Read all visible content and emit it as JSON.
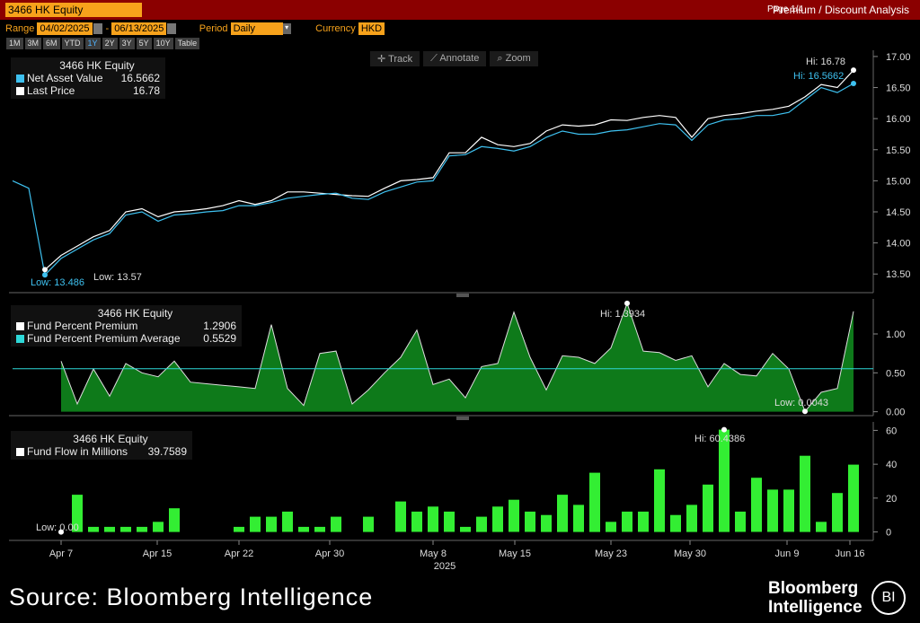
{
  "header": {
    "ticker": "3466 HK Equity",
    "page": "Page 1/4",
    "analysis_title": "Premium / Discount Analysis"
  },
  "controls": {
    "range_label": "Range",
    "range_start": "04/02/2025",
    "range_end": "06/13/2025",
    "period_label": "Period",
    "period_value": "Daily",
    "currency_label": "Currency",
    "currency_value": "HKD",
    "range_buttons": [
      "1M",
      "3M",
      "6M",
      "YTD",
      "1Y",
      "2Y",
      "3Y",
      "5Y",
      "10Y",
      "Table"
    ],
    "active_button": "1Y"
  },
  "tools": {
    "track": "Track",
    "annotate": "Annotate",
    "zoom": "Zoom"
  },
  "legend_top": {
    "title": "3466 HK Equity",
    "nav_label": "Net Asset Value",
    "nav_value": "16.5662",
    "price_label": "Last Price",
    "price_value": "16.78",
    "nav_color": "#3ec1f0",
    "price_color": "#ffffff"
  },
  "legend_mid": {
    "title": "3466 HK Equity",
    "prem_label": "Fund Percent Premium",
    "prem_value": "1.2906",
    "avg_label": "Fund Percent Premium Average",
    "avg_value": "0.5529",
    "prem_color": "#ffffff",
    "avg_color": "#2ed8d8"
  },
  "legend_bot": {
    "title": "3466 HK Equity",
    "flow_label": "Fund Flow in Millions",
    "flow_value": "39.7589"
  },
  "chart_data": [
    {
      "type": "line",
      "x_ticks": [
        "Apr 7",
        "Apr 15",
        "Apr 22",
        "Apr 30",
        "May 8",
        "May 15",
        "May 23",
        "May 30",
        "Jun 9",
        "Jun 16"
      ],
      "x_year": "2025",
      "ylim": [
        13.2,
        17.1
      ],
      "y_ticks": [
        "13.50",
        "14.00",
        "14.50",
        "15.00",
        "15.50",
        "16.00",
        "16.50",
        "17.00"
      ],
      "series": [
        {
          "name": "Net Asset Value",
          "color": "#3ec1f0",
          "values": [
            15.0,
            14.88,
            13.486,
            13.75,
            13.9,
            14.05,
            14.15,
            14.45,
            14.5,
            14.35,
            14.45,
            14.47,
            14.5,
            14.52,
            14.6,
            14.6,
            14.65,
            14.72,
            14.75,
            14.78,
            14.8,
            14.72,
            14.7,
            14.82,
            14.9,
            14.98,
            15.0,
            15.4,
            15.42,
            15.55,
            15.52,
            15.48,
            15.55,
            15.7,
            15.8,
            15.75,
            15.75,
            15.8,
            15.82,
            15.87,
            15.92,
            15.9,
            15.65,
            15.9,
            15.98,
            16.0,
            16.05,
            16.05,
            16.1,
            16.3,
            16.5,
            16.42,
            16.5662
          ]
        },
        {
          "name": "Last Price",
          "color": "#ffffff",
          "values": [
            null,
            null,
            13.57,
            13.8,
            13.95,
            14.1,
            14.2,
            14.5,
            14.55,
            14.42,
            14.5,
            14.52,
            14.55,
            14.6,
            14.68,
            14.62,
            14.68,
            14.82,
            14.82,
            14.8,
            14.78,
            14.76,
            14.75,
            14.88,
            15.0,
            15.02,
            15.05,
            15.45,
            15.45,
            15.7,
            15.58,
            15.55,
            15.6,
            15.8,
            15.9,
            15.88,
            15.9,
            15.98,
            15.97,
            16.02,
            16.05,
            16.02,
            15.7,
            16.0,
            16.05,
            16.08,
            16.12,
            16.15,
            16.2,
            16.35,
            16.55,
            16.5,
            16.78
          ]
        }
      ],
      "annotations": {
        "hi_price": "Hi: 16.78",
        "hi_nav": "Hi: 16.5662",
        "low_nav": "Low: 13.486",
        "low_price": "Low: 13.57"
      }
    },
    {
      "type": "area",
      "ylim": [
        -0.05,
        1.45
      ],
      "y_ticks": [
        "0.00",
        "0.50",
        "1.00"
      ],
      "average": 0.5529,
      "series": [
        {
          "name": "Fund Percent Premium",
          "color": "#ffffff",
          "values": [
            0.65,
            0.1,
            0.55,
            0.2,
            0.62,
            0.5,
            0.45,
            0.65,
            0.38,
            0.36,
            0.34,
            0.32,
            0.3,
            1.12,
            0.3,
            0.08,
            0.75,
            0.78,
            0.1,
            0.28,
            0.5,
            0.7,
            1.05,
            0.35,
            0.42,
            0.18,
            0.58,
            0.62,
            1.28,
            0.7,
            0.28,
            0.72,
            0.7,
            0.62,
            0.82,
            1.3934,
            0.78,
            0.76,
            0.66,
            0.72,
            0.32,
            0.62,
            0.48,
            0.46,
            0.75,
            0.55,
            0.0043,
            0.25,
            0.3,
            1.2906
          ]
        }
      ],
      "annotations": {
        "hi": "Hi: 1.3934",
        "low": "Low: 0.0043"
      }
    },
    {
      "type": "bar",
      "ylim": [
        -5,
        65
      ],
      "y_ticks": [
        "0",
        "20",
        "40",
        "60"
      ],
      "series": [
        {
          "name": "Fund Flow in Millions",
          "color": "#33ee33",
          "values": [
            0.0,
            22,
            3,
            3,
            3,
            3,
            6,
            14,
            0,
            0,
            0,
            3,
            9,
            9,
            12,
            3,
            3,
            9,
            0,
            9,
            0,
            18,
            12,
            15,
            12,
            3,
            9,
            15,
            19,
            12,
            10,
            22,
            16,
            35,
            6,
            12,
            12,
            37,
            10,
            16,
            28,
            60.4386,
            12,
            32,
            25,
            25,
            45,
            6,
            23,
            39.7589
          ]
        }
      ],
      "annotations": {
        "hi": "Hi: 60.4386",
        "low": "Low: 0.00"
      }
    }
  ],
  "footer": {
    "source": "Source: Bloomberg Intelligence",
    "brand_line1": "Bloomberg",
    "brand_line2": "Intelligence",
    "badge": "BI"
  }
}
